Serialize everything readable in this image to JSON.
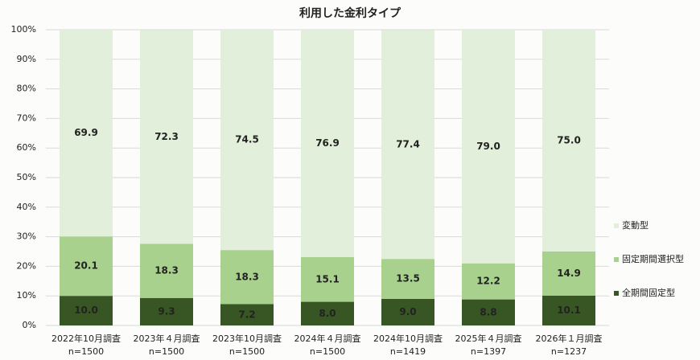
{
  "chart_data": {
    "type": "stacked_bar",
    "title": "利用した金利タイプ",
    "categories": [
      "2022年10月調査",
      "2023年４月調査",
      "2023年10月調査",
      "2024年４月調査",
      "2024年10月調査",
      "2025年４月調査",
      "2026年１月調査"
    ],
    "sample_sizes": [
      "n=1500",
      "n=1500",
      "n=1500",
      "n=1500",
      "n=1419",
      "n=1397",
      "n=1237"
    ],
    "series": [
      {
        "name": "全期間固定型",
        "color": "#375623",
        "label_color": "#ffffff",
        "values": [
          10.0,
          9.3,
          7.2,
          8.0,
          9.0,
          8.8,
          10.1
        ],
        "value_labels": [
          "10.0",
          "9.3",
          "7.2",
          "8.0",
          "9.0",
          "8.8",
          "10.1"
        ]
      },
      {
        "name": "固定期間選択型",
        "color": "#a9d18e",
        "label_color": "#000000",
        "values": [
          20.1,
          18.3,
          18.3,
          15.1,
          13.5,
          12.2,
          14.9
        ],
        "value_labels": [
          "20.1",
          "18.3",
          "18.3",
          "15.1",
          "13.5",
          "12.2",
          "14.9"
        ]
      },
      {
        "name": "変動型",
        "color": "#e2efda",
        "label_color": "#000000",
        "values": [
          69.9,
          72.3,
          74.5,
          76.9,
          77.4,
          79.0,
          75.0
        ],
        "value_labels": [
          "69.9",
          "72.3",
          "74.5",
          "76.9",
          "77.4",
          "79.0",
          "75.0"
        ]
      }
    ],
    "ylim": [
      0,
      100
    ],
    "yticks": [
      {
        "value": 0,
        "label": "0%"
      },
      {
        "value": 10,
        "label": "10%"
      },
      {
        "value": 20,
        "label": "20%"
      },
      {
        "value": 30,
        "label": "30%"
      },
      {
        "value": 40,
        "label": "40%"
      },
      {
        "value": 50,
        "label": "50%"
      },
      {
        "value": 60,
        "label": "60%"
      },
      {
        "value": 70,
        "label": "70%"
      },
      {
        "value": 80,
        "label": "80%"
      },
      {
        "value": 90,
        "label": "90%"
      },
      {
        "value": 100,
        "label": "100%"
      }
    ],
    "grid": true
  }
}
